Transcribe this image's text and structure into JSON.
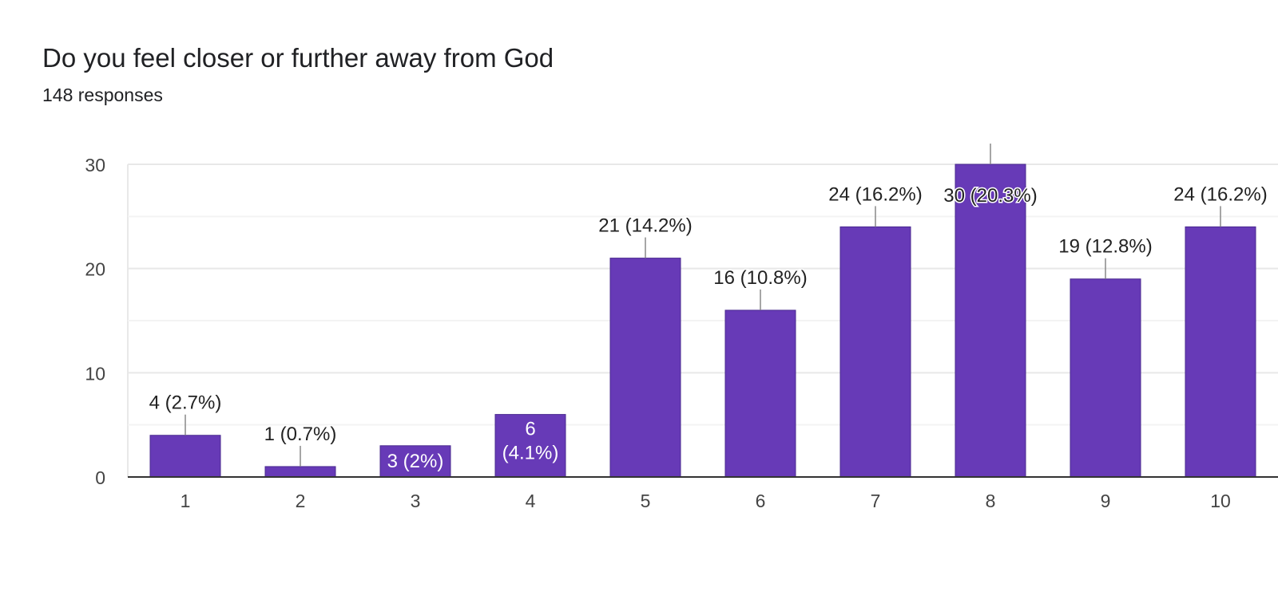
{
  "question": {
    "title": "Do you feel closer or further away from God",
    "responses": "148 responses"
  },
  "colors": {
    "bar": "#673ab7",
    "grid": "#e8e8e8",
    "axis": "#333333",
    "label": "#222222"
  },
  "chart_data": {
    "type": "bar",
    "title": "Do you feel closer or further away from God",
    "xlabel": "",
    "ylabel": "",
    "ylim": [
      0,
      30
    ],
    "yticks": [
      0,
      10,
      20,
      30
    ],
    "categories": [
      "1",
      "2",
      "3",
      "4",
      "5",
      "6",
      "7",
      "8",
      "9",
      "10"
    ],
    "values": [
      4,
      1,
      3,
      6,
      21,
      16,
      24,
      30,
      19,
      24
    ],
    "data_labels": [
      "4 (2.7%)",
      "1 (0.7%)",
      "3 (2%)",
      "6 (4.1%)",
      "21 (14.2%)",
      "16 (10.8%)",
      "24 (16.2%)",
      "30 (20.3%)",
      "19 (12.8%)",
      "24 (16.2%)"
    ],
    "grid": true,
    "legend": "none"
  }
}
